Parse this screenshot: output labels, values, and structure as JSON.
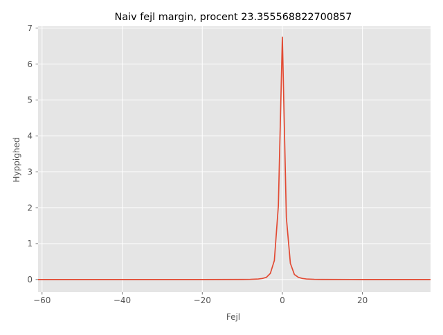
{
  "chart_data": {
    "type": "line",
    "title": "Naiv fejl margin, procent 23.355568822700857",
    "xlabel": "Fejl",
    "ylabel": "Hyppighed",
    "xlim": [
      -61,
      37
    ],
    "ylim": [
      -0.35,
      7.05
    ],
    "grid": true,
    "xticks": [
      -60,
      -40,
      -20,
      0,
      20
    ],
    "xtick_labels": [
      "−60",
      "−40",
      "−20",
      "0",
      "20"
    ],
    "yticks": [
      0,
      1,
      2,
      3,
      4,
      5,
      6,
      7
    ],
    "ytick_labels": [
      "0",
      "1",
      "2",
      "3",
      "4",
      "5",
      "6",
      "7"
    ],
    "line_color": "#e24a33",
    "x": [
      -61,
      -20,
      -10,
      -8,
      -6,
      -5,
      -4,
      -3,
      -2,
      -1,
      0,
      1,
      2,
      3,
      4,
      5,
      6,
      8,
      10,
      20,
      37
    ],
    "y": [
      0,
      0,
      0.002,
      0.005,
      0.015,
      0.03,
      0.06,
      0.17,
      0.53,
      2.05,
      6.75,
      1.72,
      0.45,
      0.14,
      0.06,
      0.03,
      0.015,
      0.005,
      0.002,
      0,
      0
    ]
  }
}
